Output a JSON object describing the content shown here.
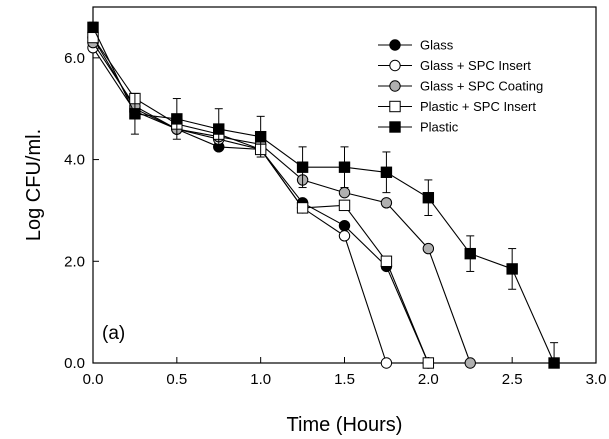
{
  "chart_data": {
    "type": "line",
    "panel_label": "(a)",
    "xlabel": "Time (Hours)",
    "ylabel": "Log CFU/ml.",
    "xlim": [
      0.0,
      3.0
    ],
    "ylim": [
      0.0,
      7.0
    ],
    "x_ticks": [
      "0.0",
      "0.5",
      "1.0",
      "1.5",
      "2.0",
      "2.5",
      "3.0"
    ],
    "y_ticks": [
      "0.0",
      "2.0",
      "4.0",
      "6.0"
    ],
    "grid": false,
    "legend_position": "top-right",
    "series": [
      {
        "name": "Glass",
        "marker": "circle",
        "fill": "#000000",
        "points": [
          [
            0.0,
            6.4
          ],
          [
            0.25,
            5.0
          ],
          [
            0.5,
            4.6
          ],
          [
            0.75,
            4.25
          ],
          [
            1.0,
            4.2
          ],
          [
            1.25,
            3.15
          ],
          [
            1.5,
            2.7
          ],
          [
            1.75,
            1.9
          ],
          [
            2.0,
            0.0
          ]
        ]
      },
      {
        "name": "Glass + SPC Insert",
        "marker": "circle",
        "fill": "#ffffff",
        "points": [
          [
            0.0,
            6.2
          ],
          [
            0.25,
            4.95
          ],
          [
            0.5,
            4.6
          ],
          [
            0.75,
            4.4
          ],
          [
            1.0,
            4.2
          ],
          [
            1.25,
            3.05
          ],
          [
            1.5,
            2.5
          ],
          [
            1.75,
            0.0
          ]
        ]
      },
      {
        "name": "Glass + SPC Coating",
        "marker": "circle",
        "fill": "#b0b0b0",
        "points": [
          [
            0.0,
            6.3
          ],
          [
            0.25,
            5.05
          ],
          [
            0.5,
            4.6
          ],
          [
            0.75,
            4.45
          ],
          [
            1.0,
            4.3
          ],
          [
            1.25,
            3.6
          ],
          [
            1.5,
            3.35
          ],
          [
            1.75,
            3.15
          ],
          [
            2.0,
            2.25
          ],
          [
            2.25,
            0.0
          ]
        ]
      },
      {
        "name": "Plastic + SPC Insert",
        "marker": "square",
        "fill": "#ffffff",
        "points": [
          [
            0.0,
            6.4
          ],
          [
            0.25,
            5.2
          ],
          [
            0.5,
            4.7
          ],
          [
            0.75,
            4.5
          ],
          [
            1.0,
            4.2
          ],
          [
            1.25,
            3.05
          ],
          [
            1.5,
            3.1
          ],
          [
            1.75,
            2.0
          ],
          [
            2.0,
            0.0
          ]
        ]
      },
      {
        "name": "Plastic",
        "marker": "square",
        "fill": "#000000",
        "points": [
          [
            0.0,
            6.6
          ],
          [
            0.25,
            4.9
          ],
          [
            0.5,
            4.8
          ],
          [
            0.75,
            4.6
          ],
          [
            1.0,
            4.45
          ],
          [
            1.25,
            3.85
          ],
          [
            1.5,
            3.85
          ],
          [
            1.75,
            3.75
          ],
          [
            2.0,
            3.25
          ],
          [
            2.25,
            2.15
          ],
          [
            2.5,
            1.85
          ],
          [
            2.75,
            0.0
          ]
        ],
        "error": [
          0.1,
          0.4,
          0.4,
          0.4,
          0.4,
          0.4,
          0.4,
          0.4,
          0.35,
          0.35,
          0.4,
          0.4
        ]
      }
    ]
  }
}
